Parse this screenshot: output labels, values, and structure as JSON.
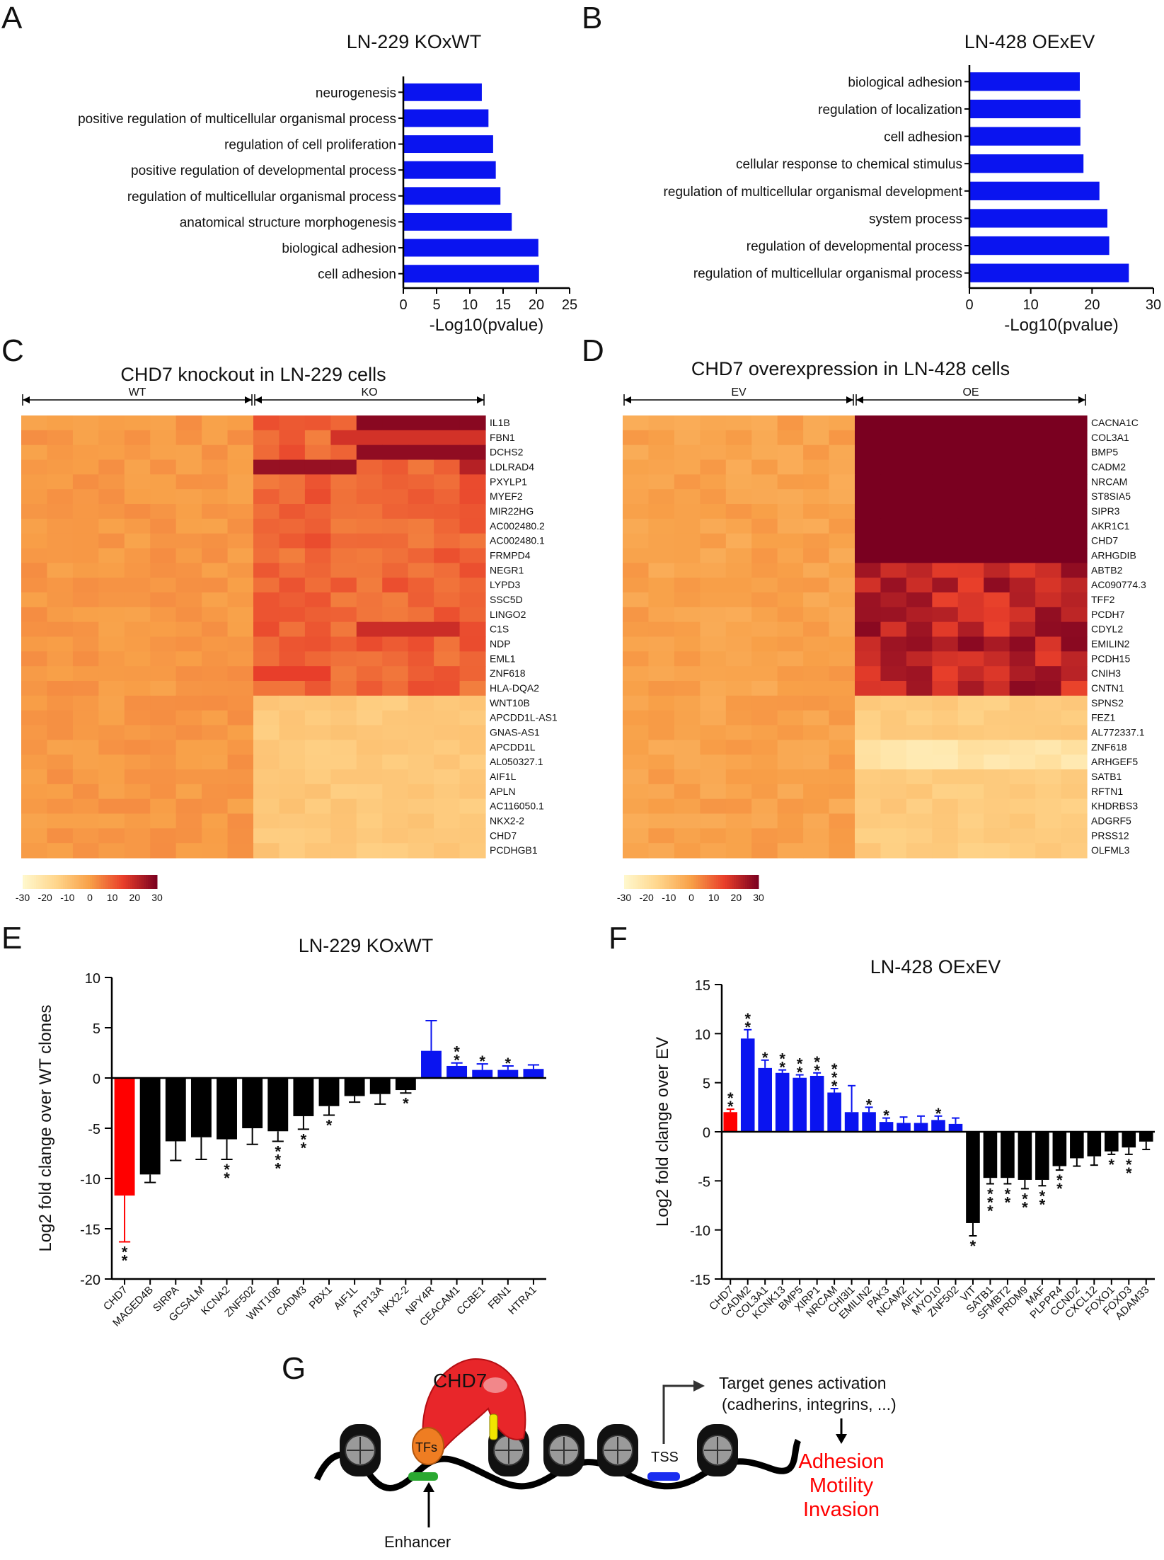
{
  "panels": {
    "A": {
      "letter": "A"
    },
    "B": {
      "letter": "B"
    },
    "C": {
      "letter": "C"
    },
    "D": {
      "letter": "D"
    },
    "E": {
      "letter": "E"
    },
    "F": {
      "letter": "F"
    },
    "G": {
      "letter": "G"
    }
  },
  "colors": {
    "bar_blue": "#0a14f0",
    "bar_black": "#000000",
    "bar_red": "#ff0000",
    "heat_low": "#ffe8b0",
    "heat_mid": "#f7a248",
    "heat_high": "#7a0020"
  },
  "chart_data": [
    {
      "id": "A",
      "type": "bar",
      "orientation": "horizontal",
      "title": "LN-229 KOxWT",
      "categories": [
        "neurogenesis",
        "positive regulation of multicellular organismal process",
        "regulation of cell proliferation",
        "positive regulation of developmental process",
        "regulation of multicellular organismal process",
        "anatomical structure morphogenesis",
        "biological adhesion",
        "cell adhesion"
      ],
      "values": [
        11.8,
        12.8,
        13.5,
        13.9,
        14.6,
        16.3,
        20.3,
        20.4
      ],
      "xlabel": "-Log10(pvalue)",
      "xlim": [
        0,
        25
      ],
      "xticks": [
        "0",
        "5",
        "10",
        "15",
        "20",
        "25"
      ],
      "color": "#0a14f0"
    },
    {
      "id": "B",
      "type": "bar",
      "orientation": "horizontal",
      "title": "LN-428 OExEV",
      "categories": [
        "biological adhesion",
        "regulation of localization",
        "cell adhesion",
        "cellular response to chemical stimulus",
        "regulation of multicellular organismal development",
        "system process",
        "regulation of developmental process",
        "regulation of multicellular organismal process"
      ],
      "values": [
        18.0,
        18.1,
        18.1,
        18.6,
        21.2,
        22.5,
        22.8,
        26.0
      ],
      "xlabel": "-Log10(pvalue)",
      "xlim": [
        0,
        30
      ],
      "xticks": [
        "0",
        "10",
        "20",
        "30"
      ],
      "color": "#0a14f0"
    },
    {
      "id": "C",
      "type": "heatmap",
      "title": "CHD7 knockout in LN-229 cells",
      "groups": [
        "WT",
        "KO"
      ],
      "rows": [
        "IL1B",
        "FBN1",
        "DCHS2",
        "LDLRAD4",
        "PXYLP1",
        "MYEF2",
        "MIR22HG",
        "AC002480.2",
        "AC002480.1",
        "FRMPD4",
        "NEGR1",
        "LYPD3",
        "SSC5D",
        "LINGO2",
        "C1S",
        "NDP",
        "EML1",
        "ZNF618",
        "HLA-DQA2",
        "WNT10B",
        "APCDD1L-AS1",
        "GNAS-AS1",
        "APCDD1L",
        "AL050327.1",
        "AIF1L",
        "APLN",
        "AC116050.1",
        "NKX2-2",
        "CHD7",
        "PCDHGB1"
      ],
      "colorbar_ticks": [
        "-30",
        "-20",
        "-10",
        "0",
        "10",
        "20",
        "30"
      ],
      "colorbar_range": [
        -30,
        30
      ]
    },
    {
      "id": "D",
      "type": "heatmap",
      "title": "CHD7 overexpression in LN-428 cells",
      "groups": [
        "EV",
        "OE"
      ],
      "rows": [
        "CACNA1C",
        "COL3A1",
        "BMP5",
        "CADM2",
        "NRCAM",
        "ST8SIA5",
        "SIPR3",
        "AKR1C1",
        "CHD7",
        "ARHGDIB",
        "ABTB2",
        "AC090774.3",
        "TFF2",
        "PCDH7",
        "CDYL2",
        "EMILIN2",
        "PCDH15",
        "CNIH3",
        "CNTN1",
        "SPNS2",
        "FEZ1",
        "AL772337.1",
        "ZNF618",
        "ARHGEF5",
        "SATB1",
        "RFTN1",
        "KHDRBS3",
        "ADGRF5",
        "PRSS12",
        "OLFML3"
      ],
      "colorbar_ticks": [
        "-30",
        "-20",
        "-10",
        "0",
        "10",
        "20",
        "30"
      ],
      "colorbar_range": [
        -30,
        30
      ]
    },
    {
      "id": "E",
      "type": "bar",
      "title": "LN-229 KOxWT",
      "ylabel": "Log2 fold clange over WT clones",
      "ylim": [
        -20,
        10
      ],
      "yticks": [
        "10",
        "5",
        "0",
        "-5",
        "-10",
        "-15",
        "-20"
      ],
      "categories": [
        "CHD7",
        "MAGED4B",
        "SIRPA",
        "GCSALM",
        "KCNA2",
        "ZNF502",
        "WNT10B",
        "CADM3",
        "PBX1",
        "AIF1L",
        "ATP13A",
        "NKX2-2",
        "NPY4R",
        "CEACAM1",
        "CCBE1",
        "FBN1",
        "HTRA1"
      ],
      "values": [
        -11.7,
        -9.6,
        -6.3,
        -5.9,
        -6.1,
        -5.0,
        -5.3,
        -3.8,
        -2.8,
        -1.8,
        -1.6,
        -1.2,
        2.7,
        1.2,
        0.8,
        0.8,
        0.9
      ],
      "errors": [
        4.6,
        0.8,
        1.9,
        2.2,
        2.0,
        1.6,
        1.0,
        1.3,
        0.9,
        0.6,
        1.0,
        0.3,
        3.0,
        0.3,
        0.6,
        0.4,
        0.4
      ],
      "colors": [
        "red",
        "black",
        "black",
        "black",
        "black",
        "black",
        "black",
        "black",
        "black",
        "black",
        "black",
        "black",
        "blue",
        "blue",
        "blue",
        "blue",
        "blue"
      ],
      "significance": [
        "**",
        "",
        "",
        "",
        "**",
        "",
        "***",
        "**",
        "*",
        "",
        "",
        "*",
        "",
        "**",
        "*",
        "*",
        ""
      ]
    },
    {
      "id": "F",
      "type": "bar",
      "title": "LN-428 OExEV",
      "ylabel": "Log2 fold clange over EV",
      "ylim": [
        -15,
        15
      ],
      "yticks": [
        "15",
        "10",
        "5",
        "0",
        "-5",
        "-10",
        "-15"
      ],
      "categories": [
        "CHD7",
        "CADM2",
        "COL3A1",
        "KCNK13",
        "BMP5",
        "XIRP1",
        "NRCAM",
        "CHI3l1",
        "EMILIN2",
        "PAK3",
        "NCAM2",
        "AIF1L",
        "MYO10",
        "ZNF502",
        "VIT",
        "SATB1",
        "SFMBT2",
        "PRDM9",
        "MAF",
        "PLPPR4",
        "CCND2",
        "CXCL12",
        "FOXO1",
        "FOXD3",
        "ADAM33"
      ],
      "values": [
        2.0,
        9.5,
        6.5,
        6.0,
        5.5,
        5.7,
        4.0,
        2.0,
        2.0,
        1.0,
        0.9,
        0.9,
        1.2,
        0.8,
        -9.3,
        -4.7,
        -4.7,
        -4.9,
        -4.9,
        -3.5,
        -2.7,
        -2.5,
        -2.0,
        -1.6,
        -1.0
      ],
      "errors": [
        0.3,
        0.9,
        0.8,
        0.3,
        0.3,
        0.3,
        0.4,
        2.7,
        0.5,
        0.4,
        0.6,
        0.7,
        0.4,
        0.6,
        1.3,
        0.6,
        0.6,
        0.9,
        0.6,
        0.4,
        0.8,
        0.9,
        0.3,
        0.7,
        0.8
      ],
      "colors": [
        "red",
        "blue",
        "blue",
        "blue",
        "blue",
        "blue",
        "blue",
        "blue",
        "blue",
        "blue",
        "blue",
        "blue",
        "blue",
        "blue",
        "black",
        "black",
        "black",
        "black",
        "black",
        "black",
        "black",
        "black",
        "black",
        "black",
        "black"
      ],
      "significance": [
        "**",
        "**",
        "*",
        "**",
        "**",
        "**",
        "***",
        "",
        "*",
        "*",
        "",
        "",
        "*",
        "",
        "*",
        "***",
        "**",
        "**",
        "**",
        "**",
        "",
        "",
        "*",
        "**",
        ""
      ]
    }
  ],
  "schematic": {
    "chd7_label": "CHD7",
    "tfs_label": "TFs",
    "tss_label": "TSS",
    "enhancer_label": "Enhancer",
    "target_line1": "Target genes activation",
    "target_line2": "(cadherins, integrins, ...)",
    "outcomes": [
      "Adhesion",
      "Motility",
      "Invasion"
    ]
  }
}
